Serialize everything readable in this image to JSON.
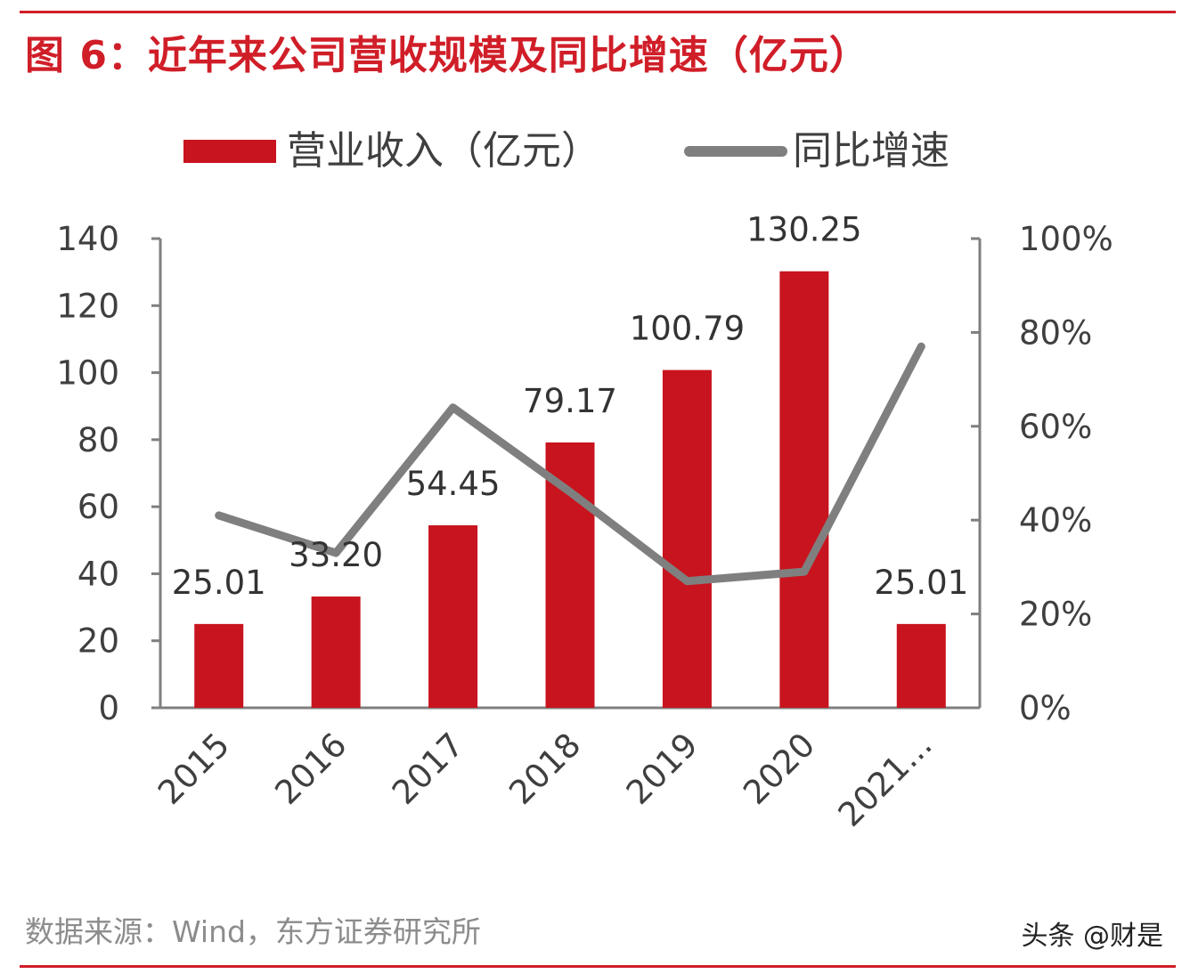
{
  "header": {
    "title": "图 6：近年来公司营收规模及同比增速（亿元）"
  },
  "footer": {
    "source": "数据来源：Wind，东方证券研究所",
    "watermark": "头条 @财是"
  },
  "colors": {
    "accent": "#d01e28",
    "bar": "#c8141e",
    "line": "#7f7f7f",
    "axis": "#7f7f7f"
  },
  "chart_data": {
    "type": "bar",
    "title": "图 6：近年来公司营收规模及同比增速（亿元）",
    "categories": [
      "2015",
      "2016",
      "2017",
      "2018",
      "2019",
      "2020",
      "2021..."
    ],
    "series": [
      {
        "name": "营业收入（亿元）",
        "type": "bar",
        "axis": "left",
        "values": [
          25.01,
          33.2,
          54.45,
          79.17,
          100.79,
          130.25,
          25.01
        ],
        "labels": [
          "25.01",
          "33.20",
          "54.45",
          "79.17",
          "100.79",
          "130.25",
          "25.01"
        ]
      },
      {
        "name": "同比增速",
        "type": "line",
        "axis": "right",
        "values": [
          0.41,
          0.33,
          0.64,
          0.46,
          0.27,
          0.29,
          0.77
        ]
      }
    ],
    "y_left": {
      "min": 0,
      "max": 140,
      "ticks": [
        "0",
        "20",
        "40",
        "60",
        "80",
        "100",
        "120",
        "140"
      ]
    },
    "y_right": {
      "min": 0,
      "max": 1,
      "ticks": [
        "0%",
        "20%",
        "40%",
        "60%",
        "80%",
        "100%"
      ]
    },
    "legend": "top",
    "grid": false
  }
}
